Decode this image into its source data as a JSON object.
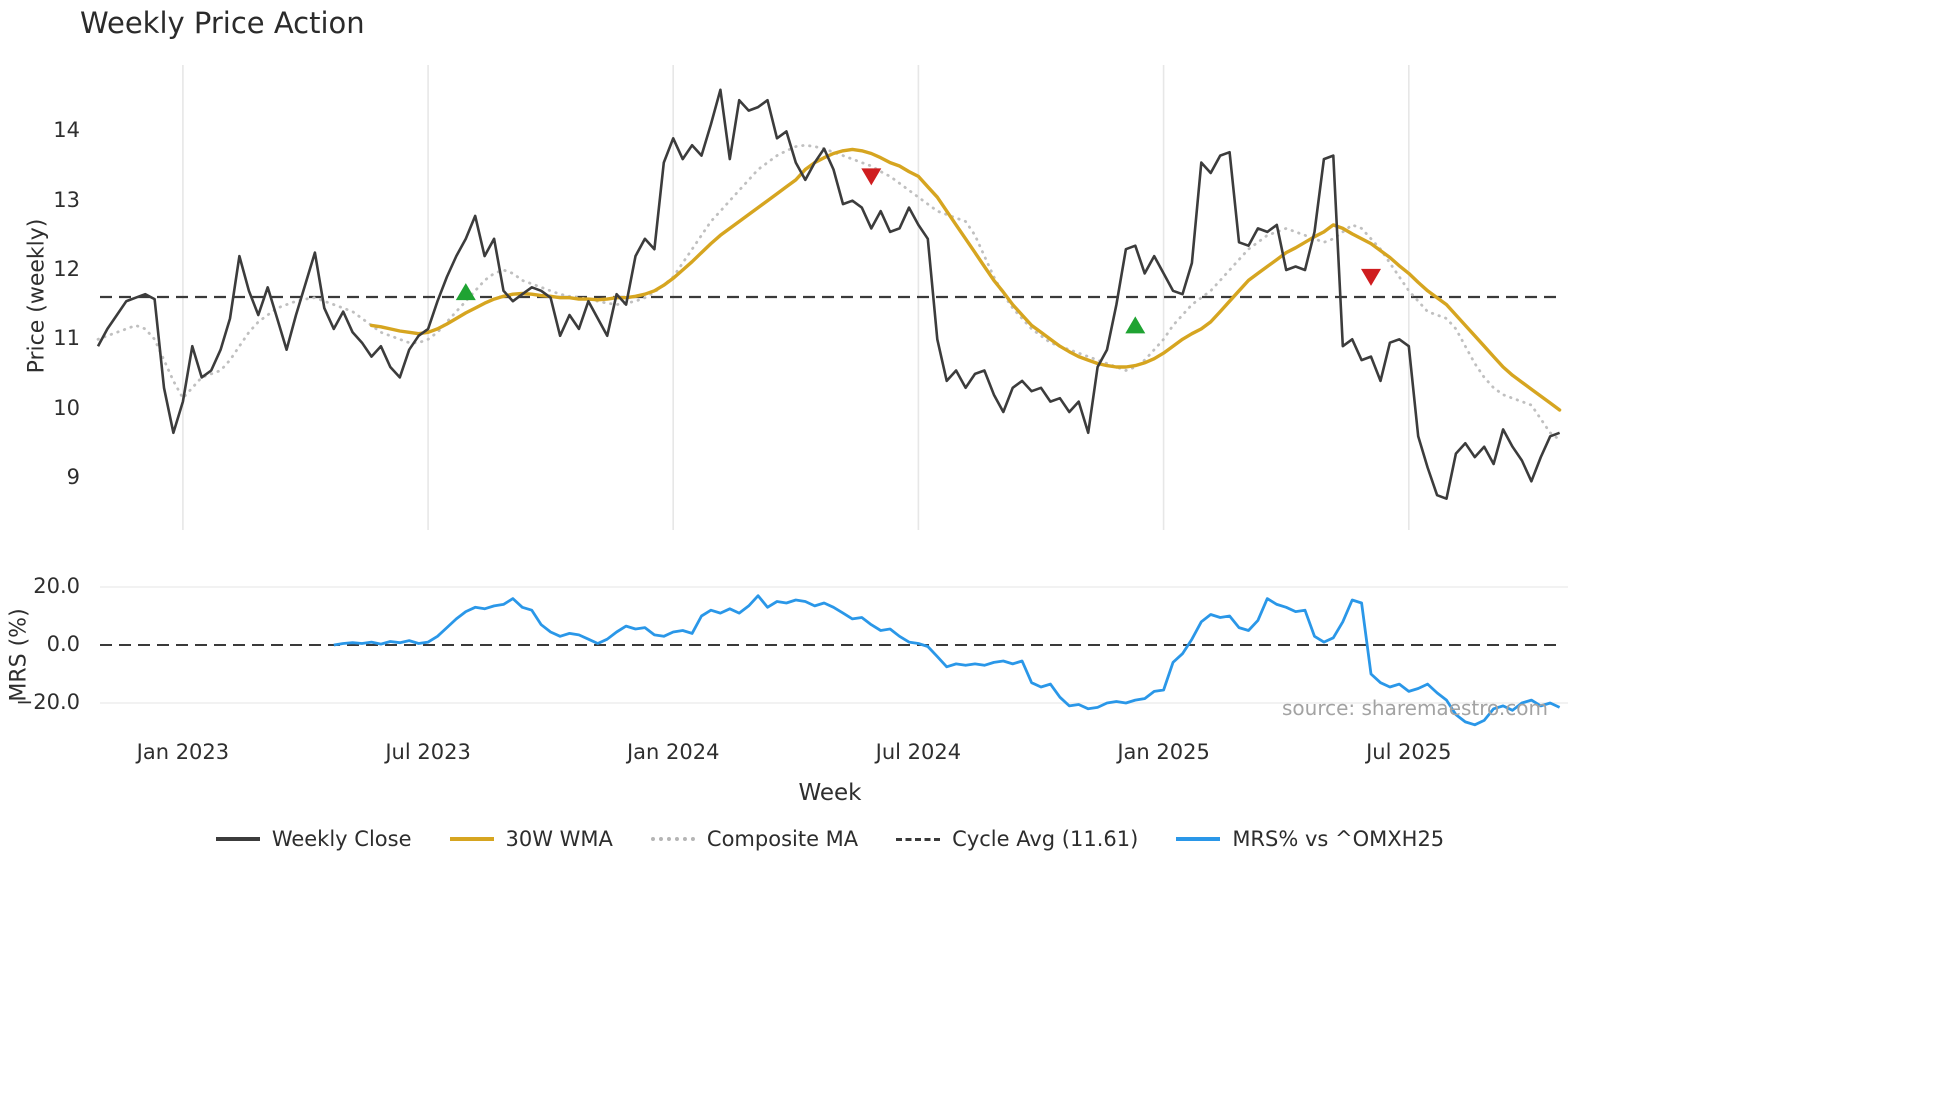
{
  "source_text": "source: sharemaestro.com",
  "colors": {
    "close": "#3c3c3c",
    "wma": "#d6a520",
    "composite": "#c0c0c0",
    "cycle_avg": "#3a3a3a",
    "mrs": "#2a97e8",
    "buy": "#1fa332",
    "sell": "#cf1d1f",
    "grid": "#e7e7e7",
    "background": "#ffffff"
  },
  "legend": [
    {
      "label": "Weekly Close",
      "color": "#3c3c3c",
      "style": "solid"
    },
    {
      "label": "30W WMA",
      "color": "#d6a520",
      "style": "solid"
    },
    {
      "label": "Composite MA",
      "color": "#b5b5b5",
      "style": "dotted"
    },
    {
      "label": "Cycle Avg (11.61)",
      "color": "#3a3a3a",
      "style": "dashed"
    },
    {
      "label": "MRS% vs ^OMXH25",
      "color": "#2a97e8",
      "style": "solid"
    }
  ],
  "chart_data": [
    {
      "type": "line",
      "panel": "price",
      "title": "Weekly Price Action",
      "xlabel": "Week",
      "ylabel": "Price (weekly)",
      "x_tick_labels": [
        "Jan 2023",
        "Jul 2023",
        "Jan 2024",
        "Jul 2024",
        "Jan 2025",
        "Jul 2025"
      ],
      "x_tick_weeks": [
        9,
        35,
        61,
        87,
        113,
        139
      ],
      "x_unit": "week index, weekly bars from ~Nov 2022 to ~Oct 2025",
      "ylim": [
        8.3,
        15.0
      ],
      "yticks": [
        9,
        10,
        11,
        12,
        13,
        14
      ],
      "cycle_avg": 11.61,
      "series": [
        {
          "name": "Weekly Close",
          "start_week": 0,
          "values": [
            10.9,
            11.15,
            11.35,
            11.55,
            11.6,
            11.65,
            11.58,
            10.3,
            9.65,
            10.1,
            10.9,
            10.45,
            10.55,
            10.85,
            11.3,
            12.2,
            11.7,
            11.35,
            11.75,
            11.3,
            10.85,
            11.35,
            11.8,
            12.25,
            11.45,
            11.15,
            11.4,
            11.1,
            10.95,
            10.75,
            10.9,
            10.6,
            10.45,
            10.85,
            11.05,
            11.15,
            11.55,
            11.9,
            12.2,
            12.45,
            12.78,
            12.2,
            12.45,
            11.7,
            11.55,
            11.65,
            11.75,
            11.7,
            11.6,
            11.05,
            11.35,
            11.15,
            11.55,
            11.3,
            11.05,
            11.65,
            11.5,
            12.2,
            12.45,
            12.3,
            13.55,
            13.9,
            13.6,
            13.8,
            13.65,
            14.1,
            14.6,
            13.6,
            14.45,
            14.3,
            14.35,
            14.45,
            13.9,
            14.0,
            13.55,
            13.3,
            13.55,
            13.75,
            13.45,
            12.95,
            13.0,
            12.9,
            12.6,
            12.85,
            12.55,
            12.6,
            12.9,
            12.65,
            12.45,
            11.0,
            10.4,
            10.55,
            10.3,
            10.5,
            10.55,
            10.2,
            9.95,
            10.3,
            10.4,
            10.25,
            10.3,
            10.1,
            10.15,
            9.95,
            10.1,
            9.65,
            10.6,
            10.85,
            11.5,
            12.3,
            12.35,
            11.95,
            12.2,
            11.95,
            11.7,
            11.65,
            12.1,
            13.55,
            13.4,
            13.65,
            13.7,
            12.4,
            12.35,
            12.6,
            12.55,
            12.65,
            12.0,
            12.05,
            12.0,
            12.55,
            13.6,
            13.65,
            10.9,
            11.0,
            10.7,
            10.75,
            10.4,
            10.95,
            11.0,
            10.9,
            9.6,
            9.15,
            8.75,
            8.7,
            9.35,
            9.5,
            9.3,
            9.45,
            9.2,
            9.7,
            9.45,
            9.25,
            8.95,
            9.3,
            9.6,
            9.65
          ]
        },
        {
          "name": "30W WMA",
          "start_week": 29,
          "values": [
            11.2,
            11.18,
            11.15,
            11.12,
            11.1,
            11.08,
            11.1,
            11.15,
            11.22,
            11.3,
            11.38,
            11.45,
            11.52,
            11.58,
            11.62,
            11.65,
            11.66,
            11.65,
            11.63,
            11.62,
            11.6,
            11.6,
            11.58,
            11.58,
            11.57,
            11.58,
            11.6,
            11.6,
            11.62,
            11.65,
            11.7,
            11.78,
            11.88,
            12.0,
            12.12,
            12.25,
            12.38,
            12.5,
            12.6,
            12.7,
            12.8,
            12.9,
            13.0,
            13.1,
            13.2,
            13.3,
            13.45,
            13.55,
            13.62,
            13.68,
            13.72,
            13.74,
            13.72,
            13.68,
            13.62,
            13.55,
            13.5,
            13.42,
            13.35,
            13.2,
            13.05,
            12.85,
            12.65,
            12.45,
            12.25,
            12.05,
            11.85,
            11.68,
            11.5,
            11.35,
            11.2,
            11.1,
            11.0,
            10.9,
            10.82,
            10.75,
            10.7,
            10.65,
            10.62,
            10.6,
            10.6,
            10.62,
            10.66,
            10.72,
            10.8,
            10.9,
            11.0,
            11.08,
            11.15,
            11.25,
            11.4,
            11.55,
            11.7,
            11.85,
            11.95,
            12.05,
            12.15,
            12.25,
            12.32,
            12.4,
            12.48,
            12.55,
            12.65,
            12.6,
            12.52,
            12.45,
            12.38,
            12.28,
            12.18,
            12.06,
            11.95,
            11.82,
            11.7,
            11.6,
            11.5,
            11.35,
            11.2,
            11.05,
            10.9,
            10.75,
            10.6,
            10.48,
            10.38,
            10.28,
            10.18,
            10.08,
            9.98
          ]
        },
        {
          "name": "Composite MA",
          "start_week": 0,
          "values": [
            11.0,
            11.05,
            11.1,
            11.15,
            11.2,
            11.15,
            11.0,
            10.7,
            10.4,
            10.15,
            10.3,
            10.45,
            10.5,
            10.55,
            10.7,
            10.9,
            11.1,
            11.25,
            11.35,
            11.45,
            11.5,
            11.55,
            11.58,
            11.6,
            11.55,
            11.5,
            11.45,
            11.4,
            11.3,
            11.2,
            11.1,
            11.05,
            11.0,
            10.95,
            10.95,
            11.0,
            11.1,
            11.25,
            11.4,
            11.55,
            11.7,
            11.85,
            11.95,
            12.0,
            11.95,
            11.85,
            11.8,
            11.75,
            11.7,
            11.65,
            11.62,
            11.6,
            11.58,
            11.55,
            11.52,
            11.5,
            11.52,
            11.55,
            11.6,
            11.68,
            11.78,
            11.9,
            12.1,
            12.3,
            12.5,
            12.7,
            12.85,
            13.0,
            13.15,
            13.3,
            13.45,
            13.55,
            13.65,
            13.72,
            13.78,
            13.8,
            13.78,
            13.75,
            13.7,
            13.65,
            13.6,
            13.55,
            13.5,
            13.42,
            13.35,
            13.25,
            13.15,
            13.05,
            12.95,
            12.85,
            12.8,
            12.75,
            12.7,
            12.5,
            12.2,
            11.9,
            11.65,
            11.45,
            11.3,
            11.15,
            11.05,
            10.95,
            10.9,
            10.85,
            10.8,
            10.75,
            10.7,
            10.65,
            10.6,
            10.55,
            10.6,
            10.7,
            10.85,
            11.0,
            11.2,
            11.35,
            11.5,
            11.6,
            11.7,
            11.85,
            12.0,
            12.15,
            12.3,
            12.4,
            12.5,
            12.55,
            12.6,
            12.55,
            12.5,
            12.45,
            12.4,
            12.45,
            12.55,
            12.65,
            12.6,
            12.45,
            12.3,
            12.1,
            11.9,
            11.7,
            11.55,
            11.4,
            11.35,
            11.3,
            11.15,
            10.9,
            10.65,
            10.45,
            10.3,
            10.2,
            10.15,
            10.1,
            10.05,
            9.85,
            9.65,
            9.55
          ]
        }
      ],
      "markers": [
        {
          "type": "buy",
          "week": 39,
          "price": 11.68
        },
        {
          "type": "sell",
          "week": 82,
          "price": 13.35
        },
        {
          "type": "buy",
          "week": 110,
          "price": 11.2
        },
        {
          "type": "sell",
          "week": 135,
          "price": 11.9
        }
      ]
    },
    {
      "type": "line",
      "panel": "mrs",
      "ylabel": "MRS (%)",
      "ylim": [
        -32,
        26
      ],
      "yticks": [
        {
          "label": "20.0",
          "value": 20
        },
        {
          "label": "0.0",
          "value": 0
        },
        {
          "label": "−20.0",
          "value": -20
        }
      ],
      "zero_line": 0,
      "series": [
        {
          "name": "MRS% vs ^OMXH25",
          "start_week": 25,
          "values": [
            0.0,
            0.5,
            0.8,
            0.5,
            1.0,
            0.3,
            1.2,
            0.8,
            1.5,
            0.5,
            1.0,
            3.0,
            6.0,
            9.0,
            11.5,
            13.0,
            12.5,
            13.5,
            14.0,
            16.0,
            13.0,
            12.0,
            7.0,
            4.5,
            3.0,
            4.0,
            3.5,
            2.0,
            0.5,
            2.0,
            4.5,
            6.5,
            5.5,
            6.0,
            3.5,
            3.0,
            4.5,
            5.0,
            4.0,
            10.0,
            12.0,
            11.0,
            12.5,
            11.0,
            13.5,
            17.0,
            13.0,
            15.0,
            14.5,
            15.5,
            15.0,
            13.5,
            14.5,
            13.0,
            11.0,
            9.0,
            9.5,
            7.0,
            5.0,
            5.5,
            3.0,
            1.0,
            0.5,
            -0.5,
            -4.0,
            -7.5,
            -6.5,
            -7.0,
            -6.5,
            -7.0,
            -6.0,
            -5.5,
            -6.5,
            -5.5,
            -13.0,
            -14.5,
            -13.5,
            -18.0,
            -21.0,
            -20.5,
            -22.0,
            -21.5,
            -20.0,
            -19.5,
            -20.0,
            -19.0,
            -18.5,
            -16.0,
            -15.5,
            -6.0,
            -3.0,
            2.0,
            8.0,
            10.5,
            9.5,
            10.0,
            6.0,
            5.0,
            8.5,
            16.0,
            14.0,
            13.0,
            11.5,
            12.0,
            3.0,
            1.0,
            2.5,
            8.0,
            15.5,
            14.5,
            -10.0,
            -13.0,
            -14.5,
            -13.5,
            -16.0,
            -15.0,
            -13.5,
            -16.5,
            -19.0,
            -24.0,
            -26.5,
            -27.5,
            -26.0,
            -22.0,
            -21.0,
            -22.5,
            -20.0,
            -19.0,
            -21.0,
            -20.0,
            -21.5
          ]
        }
      ]
    }
  ]
}
